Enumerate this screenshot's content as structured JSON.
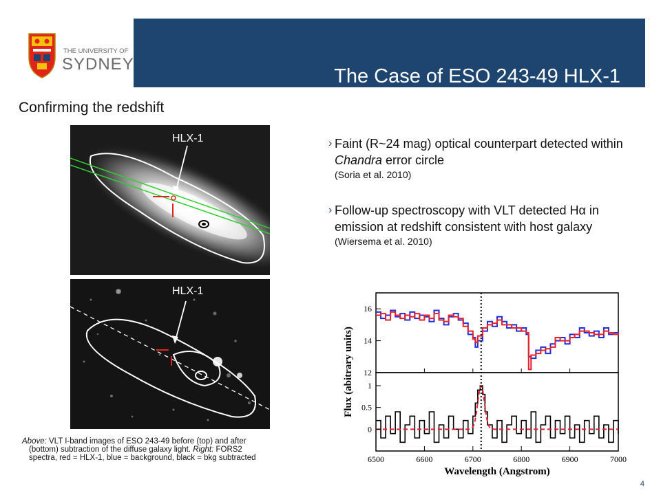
{
  "header": {
    "title": "The Case of ESO 243-49 HLX-1",
    "logo": {
      "line1": "THE UNIVERSITY OF",
      "line2": "SYDNEY",
      "icon": "crest-icon"
    }
  },
  "subtitle": "Confirming the redshift",
  "bullets": [
    {
      "marker": "›",
      "pre": "Faint (R~24 mag) optical counterpart detected within ",
      "em": "Chandra",
      "post": " error circle",
      "ref": "(Soria et al. 2010)"
    },
    {
      "marker": "›",
      "text": "Follow-up spectroscopy with VLT detected Hα in emission at redshift consistent with host galaxy",
      "ref": "(Wiersema et al. 2010)"
    }
  ],
  "images": {
    "top_label": "HLX-1",
    "bottom_label": "HLX-1"
  },
  "caption": {
    "above_em": "Above:",
    "line1": " VLT I-band images of ESO 243-49 before (top) and after",
    "line2a": "(bottom) subtraction of the diffuse galaxy light. ",
    "right_em": "Right:",
    "line2b": " FORS2",
    "line3": "spectra, red = HLX-1, blue = background, black = bkg subtracted"
  },
  "page_number": "4",
  "chart_data": {
    "type": "line",
    "xlabel": "Wavelength (Angstrom)",
    "ylabel": "Flux (abitrary units)",
    "x_ticks": [
      6500,
      6600,
      6700,
      6800,
      6900,
      7000
    ],
    "xlim": [
      6500,
      7000
    ],
    "marker_line_x": 6717,
    "colors": {
      "red": "#e8202a",
      "blue": "#2030d8",
      "black": "#000000"
    },
    "top_panel": {
      "ylim": [
        12,
        17
      ],
      "y_ticks": [
        12,
        14,
        16
      ],
      "series": [
        {
          "color": "blue",
          "points": [
            [
              6500,
              15.8
            ],
            [
              6510,
              15.4
            ],
            [
              6520,
              15.6
            ],
            [
              6530,
              15.9
            ],
            [
              6540,
              15.5
            ],
            [
              6550,
              15.7
            ],
            [
              6560,
              15.3
            ],
            [
              6570,
              15.8
            ],
            [
              6580,
              15.4
            ],
            [
              6590,
              15.6
            ],
            [
              6600,
              15.5
            ],
            [
              6610,
              15.2
            ],
            [
              6620,
              15.9
            ],
            [
              6630,
              15.4
            ],
            [
              6640,
              15.0
            ],
            [
              6650,
              15.5
            ],
            [
              6660,
              15.7
            ],
            [
              6670,
              15.3
            ],
            [
              6680,
              15.1
            ],
            [
              6690,
              14.4
            ],
            [
              6700,
              14.2
            ],
            [
              6705,
              13.6
            ],
            [
              6710,
              14.0
            ],
            [
              6720,
              14.6
            ],
            [
              6730,
              15.2
            ],
            [
              6740,
              14.9
            ],
            [
              6750,
              15.5
            ],
            [
              6760,
              15.2
            ],
            [
              6770,
              14.8
            ],
            [
              6780,
              15.0
            ],
            [
              6790,
              14.6
            ],
            [
              6800,
              14.8
            ],
            [
              6810,
              14.4
            ],
            [
              6815,
              13.0
            ],
            [
              6820,
              12.9
            ],
            [
              6830,
              13.4
            ],
            [
              6840,
              13.6
            ],
            [
              6850,
              13.2
            ],
            [
              6860,
              13.8
            ],
            [
              6870,
              14.0
            ],
            [
              6880,
              14.2
            ],
            [
              6890,
              13.8
            ],
            [
              6900,
              14.4
            ],
            [
              6910,
              14.2
            ],
            [
              6920,
              14.8
            ],
            [
              6930,
              14.5
            ],
            [
              6940,
              14.3
            ],
            [
              6950,
              14.6
            ],
            [
              6960,
              14.2
            ],
            [
              6970,
              14.8
            ],
            [
              6980,
              14.4
            ],
            [
              6990,
              14.5
            ],
            [
              7000,
              14.3
            ]
          ]
        },
        {
          "color": "red",
          "points": [
            [
              6500,
              15.6
            ],
            [
              6510,
              15.7
            ],
            [
              6520,
              15.3
            ],
            [
              6530,
              15.8
            ],
            [
              6540,
              15.6
            ],
            [
              6550,
              15.4
            ],
            [
              6560,
              15.6
            ],
            [
              6570,
              15.5
            ],
            [
              6580,
              15.7
            ],
            [
              6590,
              15.3
            ],
            [
              6600,
              15.6
            ],
            [
              6610,
              15.4
            ],
            [
              6620,
              15.7
            ],
            [
              6630,
              15.3
            ],
            [
              6640,
              15.2
            ],
            [
              6650,
              15.6
            ],
            [
              6660,
              15.5
            ],
            [
              6670,
              15.4
            ],
            [
              6680,
              14.9
            ],
            [
              6690,
              14.6
            ],
            [
              6700,
              14.1
            ],
            [
              6705,
              13.9
            ],
            [
              6710,
              14.3
            ],
            [
              6720,
              14.8
            ],
            [
              6730,
              15.0
            ],
            [
              6740,
              15.1
            ],
            [
              6750,
              15.3
            ],
            [
              6760,
              15.0
            ],
            [
              6770,
              15.0
            ],
            [
              6780,
              14.8
            ],
            [
              6790,
              14.8
            ],
            [
              6800,
              14.6
            ],
            [
              6810,
              14.5
            ],
            [
              6815,
              12.2
            ],
            [
              6820,
              13.1
            ],
            [
              6830,
              13.2
            ],
            [
              6840,
              13.4
            ],
            [
              6850,
              13.5
            ],
            [
              6860,
              13.6
            ],
            [
              6870,
              14.2
            ],
            [
              6880,
              14.0
            ],
            [
              6890,
              14.0
            ],
            [
              6900,
              14.2
            ],
            [
              6910,
              14.4
            ],
            [
              6920,
              14.6
            ],
            [
              6930,
              14.6
            ],
            [
              6940,
              14.5
            ],
            [
              6950,
              14.4
            ],
            [
              6960,
              14.4
            ],
            [
              6970,
              14.6
            ],
            [
              6980,
              14.5
            ],
            [
              6990,
              14.4
            ],
            [
              7000,
              14.5
            ]
          ]
        }
      ]
    },
    "bottom_panel": {
      "ylim": [
        -0.5,
        1.3
      ],
      "y_ticks": [
        0,
        0.5,
        1
      ],
      "y_tick_labels": [
        "0",
        "0.5",
        "1"
      ],
      "series": [
        {
          "color": "black",
          "points": [
            [
              6500,
              0.2
            ],
            [
              6510,
              -0.2
            ],
            [
              6520,
              0.3
            ],
            [
              6530,
              -0.1
            ],
            [
              6540,
              0.4
            ],
            [
              6550,
              -0.3
            ],
            [
              6560,
              0.1
            ],
            [
              6570,
              0.3
            ],
            [
              6580,
              -0.2
            ],
            [
              6590,
              0.2
            ],
            [
              6600,
              -0.1
            ],
            [
              6610,
              0.4
            ],
            [
              6620,
              -0.3
            ],
            [
              6630,
              0.1
            ],
            [
              6640,
              -0.2
            ],
            [
              6650,
              0.3
            ],
            [
              6660,
              0.0
            ],
            [
              6670,
              -0.2
            ],
            [
              6680,
              0.2
            ],
            [
              6690,
              -0.1
            ],
            [
              6700,
              0.3
            ],
            [
              6705,
              0.6
            ],
            [
              6710,
              0.9
            ],
            [
              6715,
              1.0
            ],
            [
              6720,
              0.8
            ],
            [
              6725,
              0.4
            ],
            [
              6730,
              0.1
            ],
            [
              6740,
              -0.2
            ],
            [
              6750,
              0.2
            ],
            [
              6760,
              -0.3
            ],
            [
              6770,
              0.1
            ],
            [
              6780,
              0.3
            ],
            [
              6790,
              -0.1
            ],
            [
              6800,
              0.2
            ],
            [
              6810,
              -0.2
            ],
            [
              6820,
              0.4
            ],
            [
              6830,
              -0.3
            ],
            [
              6840,
              0.1
            ],
            [
              6850,
              0.3
            ],
            [
              6860,
              -0.2
            ],
            [
              6870,
              0.2
            ],
            [
              6880,
              -0.1
            ],
            [
              6890,
              0.3
            ],
            [
              6900,
              -0.2
            ],
            [
              6910,
              0.1
            ],
            [
              6920,
              -0.3
            ],
            [
              6930,
              0.2
            ],
            [
              6940,
              -0.1
            ],
            [
              6950,
              0.3
            ],
            [
              6960,
              -0.2
            ],
            [
              6970,
              0.1
            ],
            [
              6980,
              -0.3
            ],
            [
              6990,
              0.2
            ],
            [
              7000,
              -0.1
            ]
          ]
        },
        {
          "color": "red",
          "style": "dashed",
          "model": "gaussian",
          "center": 6717,
          "amplitude": 1.0,
          "sigma": 7,
          "baseline": 0
        }
      ]
    }
  }
}
